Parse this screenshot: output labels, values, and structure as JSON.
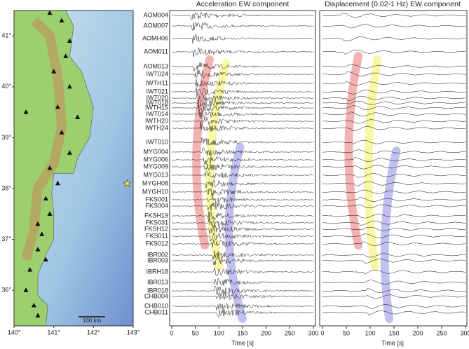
{
  "map": {
    "xlim": [
      140,
      143
    ],
    "ylim": [
      35.3,
      41.5
    ],
    "xticks": [
      {
        "value": 140,
        "label": "140°"
      },
      {
        "value": 141,
        "label": "141°"
      },
      {
        "value": 142,
        "label": "142°"
      },
      {
        "value": 143,
        "label": "143°"
      }
    ],
    "yticks": [
      {
        "value": 36,
        "label": "36°"
      },
      {
        "value": 37,
        "label": "37°"
      },
      {
        "value": 38,
        "label": "38°"
      },
      {
        "value": 39,
        "label": "39°"
      },
      {
        "value": 40,
        "label": "40°"
      },
      {
        "value": 41,
        "label": "41°"
      }
    ],
    "scale_label": "100 km"
  },
  "panels": [
    {
      "title": "Acceleration EW component",
      "xlabel": "Time [s]",
      "xlim": [
        0,
        300
      ],
      "xticks": [
        0,
        50,
        100,
        150,
        200,
        250,
        300
      ]
    },
    {
      "title": "Displacement (0.02-1 Hz) EW component",
      "xlabel": "Time [s]",
      "xlim": [
        0,
        300
      ],
      "xticks": [
        0,
        50,
        100,
        150,
        200,
        250,
        300
      ]
    }
  ],
  "stations": [
    "AOM004",
    "AOM007",
    "AOMH06",
    "AOM011",
    "AOM013",
    "IWT024",
    "IWTH11",
    "IWT021",
    "IWT020",
    "IWT018",
    "IWTH15",
    "IWT014",
    "IWTH20",
    "IWTH24",
    "IWT010",
    "MYG004",
    "MYG006",
    "MYG009",
    "MYG013",
    "MYGH08",
    "MYGH10",
    "FKS001",
    "FKS004",
    "FKSH19",
    "FKS031",
    "FKSH12",
    "FKS011",
    "FKS012",
    "IBR002",
    "IBR003",
    "IBRH18",
    "IBR013",
    "IBR018",
    "CHB004",
    "CHB010",
    "CHB011"
  ]
}
